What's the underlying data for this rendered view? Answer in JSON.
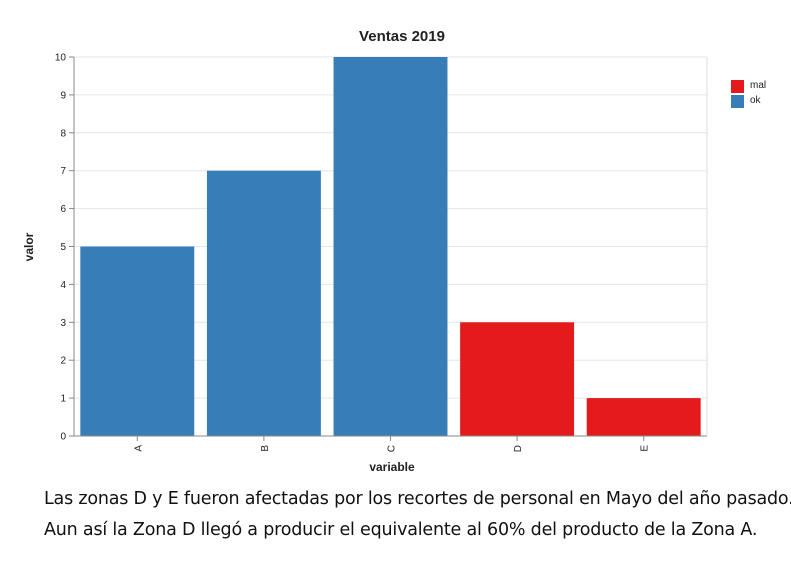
{
  "chart_data": {
    "type": "bar",
    "title": "Ventas 2019",
    "xlabel": "variable",
    "ylabel": "valor",
    "categories": [
      "A",
      "B",
      "C",
      "D",
      "E"
    ],
    "values": [
      5,
      7,
      10,
      3,
      1
    ],
    "status": [
      "ok",
      "ok",
      "ok",
      "mal",
      "mal"
    ],
    "ylim": [
      0,
      10
    ],
    "yticks": [
      0,
      1,
      2,
      3,
      4,
      5,
      6,
      7,
      8,
      9,
      10
    ],
    "grid": true,
    "legend": {
      "placement": "top-right",
      "entries": [
        {
          "name": "mal",
          "color": "#e41a1c"
        },
        {
          "name": "ok",
          "color": "#377eb8"
        }
      ]
    }
  },
  "caption": {
    "line1": "Las zonas D y E fueron afectadas por los recortes de personal en Mayo del año pasado.",
    "line2": "Aun así la Zona D llegó a producir el equivalente al 60% del producto de la Zona A."
  }
}
